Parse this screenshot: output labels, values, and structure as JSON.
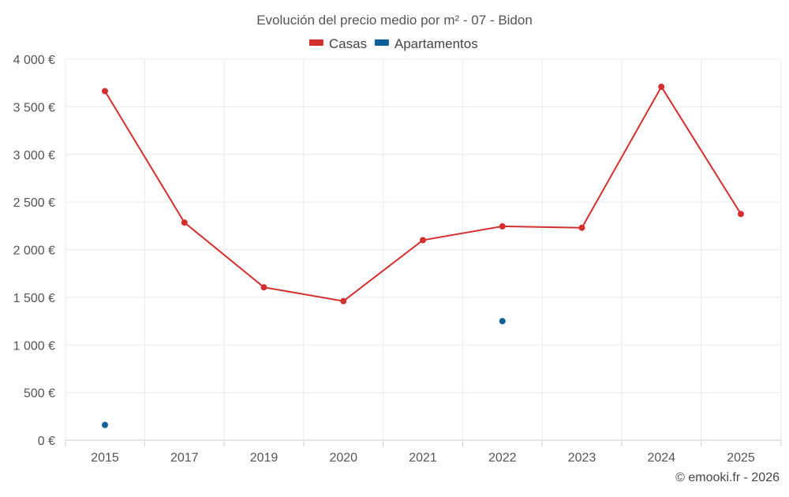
{
  "chart_data": {
    "type": "line",
    "title": "Evolución del precio medio por m² - 07 - Bidon",
    "categories": [
      "2015",
      "2017",
      "2019",
      "2020",
      "2021",
      "2022",
      "2023",
      "2024",
      "2025"
    ],
    "series": [
      {
        "name": "Casas",
        "color": "#d32f2f",
        "values": [
          3665,
          2285,
          1605,
          1460,
          2100,
          2245,
          2230,
          3710,
          2375
        ]
      },
      {
        "name": "Apartamentos",
        "color": "#0d5f98",
        "values": [
          160,
          null,
          null,
          null,
          null,
          1250,
          null,
          null,
          null
        ]
      }
    ],
    "ylim": [
      0,
      4000
    ],
    "yticks": [
      0,
      500,
      1000,
      1500,
      2000,
      2500,
      3000,
      3500,
      4000
    ],
    "ytick_labels": [
      "0 €",
      "500 €",
      "1 000 €",
      "1 500 €",
      "2 000 €",
      "2 500 €",
      "3 000 €",
      "3 500 €",
      "4 000 €"
    ],
    "xlabel": "",
    "ylabel": "",
    "grid": true,
    "legend_position": "top-center"
  },
  "credit": "© emooki.fr - 2026"
}
